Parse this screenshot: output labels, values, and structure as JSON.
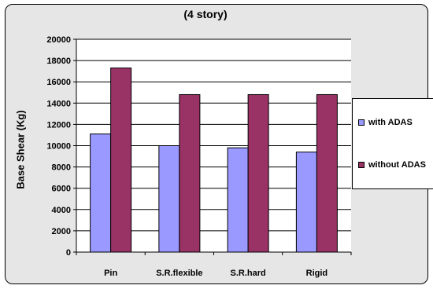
{
  "chart_data": {
    "type": "bar",
    "title": "(4 story)",
    "xlabel": "",
    "ylabel": "Base Shear (Kg)",
    "categories": [
      "Pin",
      "S.R.flexible",
      "S.R.hard",
      "Rigid"
    ],
    "series": [
      {
        "name": "with ADAS",
        "values": [
          11100,
          10000,
          9800,
          9400
        ]
      },
      {
        "name": "without ADAS",
        "values": [
          17300,
          14800,
          14800,
          14800
        ]
      }
    ],
    "ylim": [
      0,
      20000
    ],
    "yticks": [
      0,
      2000,
      4000,
      6000,
      8000,
      10000,
      12000,
      14000,
      16000,
      18000,
      20000
    ],
    "grid": true,
    "legend_position": "right",
    "colors": {
      "series": [
        "#9999ff",
        "#993366"
      ],
      "plot_background": "#ffffff",
      "chart_background": "#e6e6e6",
      "grid": "#000000"
    }
  }
}
